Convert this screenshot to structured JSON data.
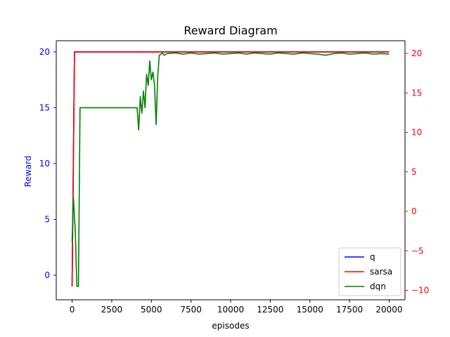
{
  "chart_data": {
    "type": "line",
    "title": "Reward Diagram",
    "xlabel": "episodes",
    "ylabel": "Reward",
    "ylabel_right": "",
    "xlim": [
      -1000,
      21000
    ],
    "ylim": [
      -2.2,
      21
    ],
    "ylim_right": [
      -11.2,
      21.6
    ],
    "xticks": [
      0,
      2500,
      5000,
      7500,
      10000,
      12500,
      15000,
      17500,
      20000
    ],
    "yticks": [
      0,
      5,
      10,
      15,
      20
    ],
    "yticks_right": [
      -10,
      -5,
      0,
      5,
      10,
      15,
      20
    ],
    "left_axis_color": "#0000ff",
    "right_axis_color": "#ff0000",
    "grid": false,
    "legend_position": "lower-right",
    "series": [
      {
        "name": "q",
        "color": "#0000ff",
        "x": [
          0,
          150,
          20000
        ],
        "y": [
          -1,
          20,
          20
        ]
      },
      {
        "name": "sarsa",
        "color": "#ff0000",
        "x": [
          0,
          150,
          20000
        ],
        "y": [
          -1,
          20,
          20
        ]
      },
      {
        "name": "dqn",
        "color": "#008000",
        "x": [
          0,
          80,
          200,
          300,
          400,
          500,
          550,
          4000,
          4100,
          4200,
          4300,
          4400,
          4500,
          4600,
          4700,
          4800,
          4900,
          5000,
          5100,
          5200,
          5300,
          5400,
          5500,
          5600,
          5700,
          5800,
          6000,
          6500,
          7000,
          7500,
          8000,
          8500,
          9000,
          9500,
          10000,
          10500,
          11000,
          11500,
          12000,
          12500,
          13000,
          13500,
          14000,
          14500,
          15000,
          15500,
          16000,
          16500,
          17000,
          17500,
          18000,
          18500,
          19000,
          19500,
          20000
        ],
        "y": [
          3,
          7,
          4,
          -1,
          -1,
          15,
          15,
          15,
          15,
          13,
          16,
          14.5,
          16.5,
          15,
          18,
          17,
          19.2,
          17.5,
          18.2,
          17,
          13.5,
          17.8,
          19.7,
          19.8,
          19.9,
          19.7,
          19.85,
          19.9,
          19.8,
          19.9,
          19.8,
          19.85,
          19.9,
          19.8,
          19.85,
          19.9,
          19.8,
          19.9,
          19.85,
          19.8,
          19.9,
          19.85,
          19.8,
          19.9,
          19.85,
          19.8,
          19.7,
          19.85,
          19.9,
          19.8,
          19.85,
          19.9,
          19.8,
          19.85,
          19.8
        ]
      }
    ]
  }
}
